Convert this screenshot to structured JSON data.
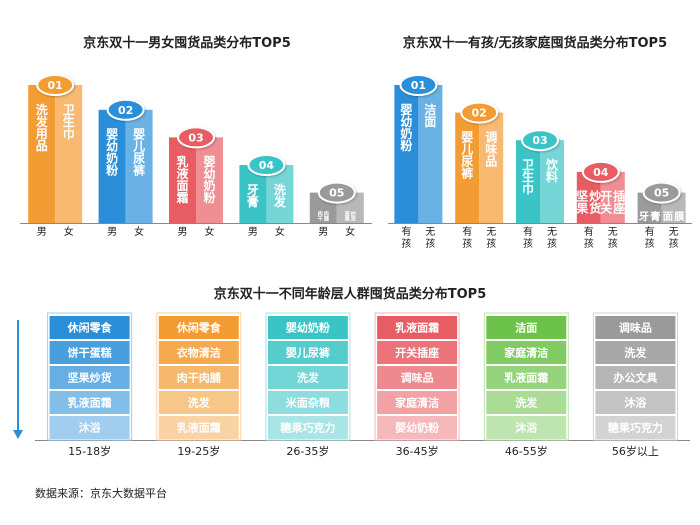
{
  "gender_chart": {
    "title": "京东双十一男女囤货品类分布TOP5",
    "groups": [
      {
        "rank": "01",
        "color": "#F39C33",
        "x_labels": [
          "男",
          "女"
        ],
        "bars": [
          {
            "label": "洗发用品",
            "value": 100
          },
          {
            "label": "卫生巾",
            "value": 100
          }
        ]
      },
      {
        "rank": "02",
        "color": "#2A8FD8",
        "x_labels": [
          "男",
          "女"
        ],
        "bars": [
          {
            "label": "婴幼奶粉",
            "value": 82
          },
          {
            "label": "婴儿尿裤",
            "value": 82
          }
        ]
      },
      {
        "rank": "03",
        "color": "#E85D64",
        "x_labels": [
          "男",
          "女"
        ],
        "bars": [
          {
            "label": "乳液面霜",
            "value": 62
          },
          {
            "label": "婴幼奶粉",
            "value": 62
          }
        ]
      },
      {
        "rank": "04",
        "color": "#3BC4C6",
        "x_labels": [
          "男",
          "女"
        ],
        "bars": [
          {
            "label": "牙膏",
            "value": 42
          },
          {
            "label": "洗发",
            "value": 42
          }
        ]
      },
      {
        "rank": "05",
        "color": "#9A9A9A",
        "x_labels": [
          "男",
          "女"
        ],
        "bars": [
          {
            "label": "肉干肉脯",
            "value": 22
          },
          {
            "label": "坚果炒货",
            "value": 22
          }
        ]
      }
    ]
  },
  "family_chart": {
    "title": "京东双十一有孩/无孩家庭囤货品类分布TOP5",
    "groups": [
      {
        "rank": "01",
        "color": "#2A8FD8",
        "x_labels": [
          "有孩",
          "无孩"
        ],
        "bars": [
          {
            "label": "婴幼奶粉",
            "value": 100
          },
          {
            "label": "洁面",
            "value": 100
          }
        ]
      },
      {
        "rank": "02",
        "color": "#F39C33",
        "x_labels": [
          "有孩",
          "无孩"
        ],
        "bars": [
          {
            "label": "婴儿尿裤",
            "value": 80
          },
          {
            "label": "调味品",
            "value": 80
          }
        ]
      },
      {
        "rank": "03",
        "color": "#3BC4C6",
        "x_labels": [
          "有孩",
          "无孩"
        ],
        "bars": [
          {
            "label": "卫生巾",
            "value": 60
          },
          {
            "label": "饮料",
            "value": 60
          }
        ]
      },
      {
        "rank": "04",
        "color": "#E85D64",
        "x_labels": [
          "有孩",
          "无孩"
        ],
        "bars": [
          {
            "label": "坚果炒货",
            "value": 37
          },
          {
            "label": "开关插座",
            "value": 37
          }
        ]
      },
      {
        "rank": "05",
        "color": "#9A9A9A",
        "x_labels": [
          "有孩",
          "无孩"
        ],
        "bars": [
          {
            "label": "牙膏",
            "value": 22
          },
          {
            "label": "面膜",
            "value": 22
          }
        ]
      }
    ]
  },
  "age_chart": {
    "title": "京东双十一不同年龄层人群囤货品类分布TOP5",
    "groups": [
      {
        "label": "15-18岁",
        "color": "#2A8FD8",
        "items": [
          "休闲零食",
          "饼干蛋糕",
          "坚果炒货",
          "乳液面霜",
          "沐浴"
        ]
      },
      {
        "label": "19-25岁",
        "color": "#F39C33",
        "items": [
          "休闲零食",
          "衣物清洁",
          "肉干肉脯",
          "洗发",
          "乳液面霜"
        ]
      },
      {
        "label": "26-35岁",
        "color": "#3BC4C6",
        "items": [
          "婴幼奶粉",
          "婴儿尿裤",
          "洗发",
          "米面杂粮",
          "糖果巧克力"
        ]
      },
      {
        "label": "36-45岁",
        "color": "#E85D64",
        "items": [
          "乳液面霜",
          "开关插座",
          "调味品",
          "家庭清洁",
          "婴幼奶粉"
        ]
      },
      {
        "label": "46-55岁",
        "color": "#6CC24A",
        "items": [
          "洁面",
          "家庭清洁",
          "乳液面霜",
          "洗发",
          "沐浴"
        ]
      },
      {
        "label": "56岁以上",
        "color": "#9A9A9A",
        "items": [
          "调味品",
          "洗发",
          "办公文具",
          "沐浴",
          "糖果巧克力"
        ]
      }
    ]
  },
  "source": "数据来源：京东大数据平台"
}
